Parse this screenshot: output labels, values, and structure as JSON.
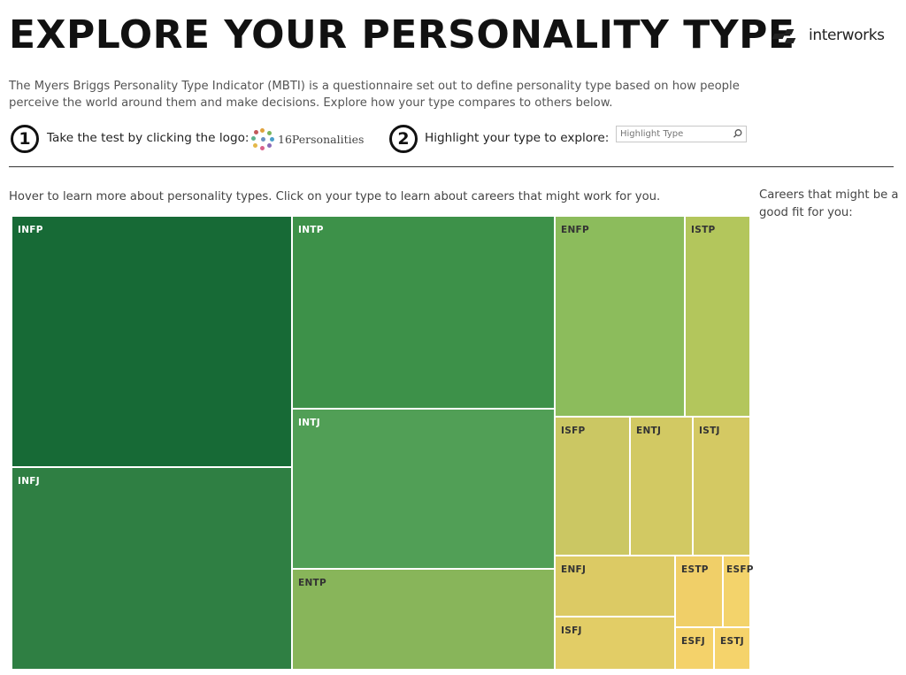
{
  "header": {
    "title": "EXPLORE YOUR PERSONALITY TYPE",
    "brand": "interworks"
  },
  "intro": "The Myers Briggs Personality Type Indicator (MBTI) is a questionnaire set out to define personality type based on how people perceive the world around them and make decisions. Explore how your type compares to others below.",
  "steps": {
    "step1_number": "1",
    "step1_text": "Take the test by clicking the logo:",
    "logo_label": "16Personalities",
    "step2_number": "2",
    "step2_text": "Highlight your type to explore:",
    "search_placeholder": "Highlight Type"
  },
  "hint": "Hover to learn more about personality types. Click on your type to learn about careers that might work for you.",
  "careers_panel": {
    "title": "Careers that might be a good fit for you:"
  },
  "chart_data": {
    "type": "treemap",
    "title": "",
    "nodes": [
      {
        "label": "INFP",
        "value": 17.4,
        "color": "#176a36"
      },
      {
        "label": "INFJ",
        "value": 14.0,
        "color": "#2f7f43"
      },
      {
        "label": "INTP",
        "value": 12.0,
        "color": "#3d9149"
      },
      {
        "label": "INTJ",
        "value": 10.4,
        "color": "#519f56"
      },
      {
        "label": "ENTP",
        "value": 6.4,
        "color": "#88b55a"
      },
      {
        "label": "ENFP",
        "value": 6.3,
        "color": "#8cbc5c"
      },
      {
        "label": "ISTP",
        "value": 3.3,
        "color": "#b3c65c"
      },
      {
        "label": "ISFP",
        "value": 3.3,
        "color": "#cbc763"
      },
      {
        "label": "ENTJ",
        "value": 2.8,
        "color": "#d2c963"
      },
      {
        "label": "ISTJ",
        "value": 2.4,
        "color": "#d4c963"
      },
      {
        "label": "ENFJ",
        "value": 2.3,
        "color": "#dcca64"
      },
      {
        "label": "ISFJ",
        "value": 2.1,
        "color": "#e2cd66"
      },
      {
        "label": "ESTP",
        "value": 0.9,
        "color": "#f0cf68"
      },
      {
        "label": "ESFP",
        "value": 0.6,
        "color": "#f3d36b"
      },
      {
        "label": "ESFJ",
        "value": 0.6,
        "color": "#f4d26a"
      },
      {
        "label": "ESTJ",
        "value": 0.5,
        "color": "#f5d36b"
      }
    ]
  }
}
